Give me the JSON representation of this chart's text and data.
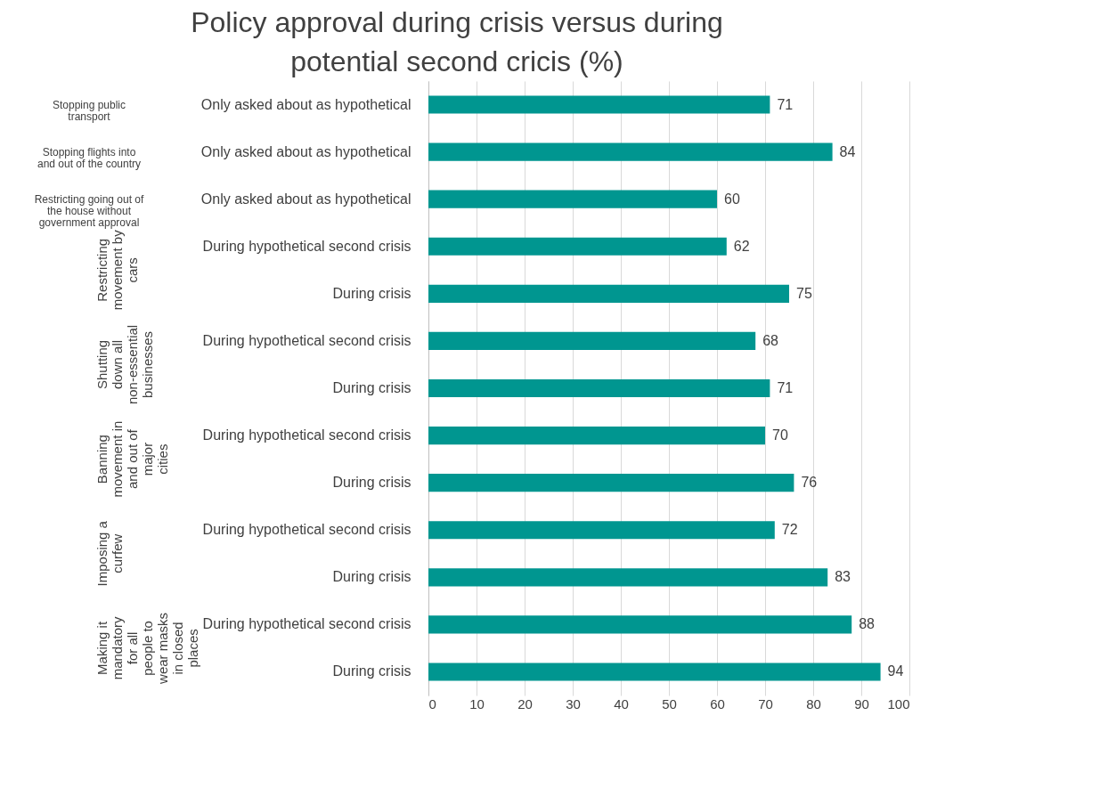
{
  "chart_data": {
    "type": "bar",
    "orientation": "horizontal",
    "title": "Policy approval during crisis versus during potential second cricis (%)",
    "categories": [
      "Only asked about as hypothetical",
      "Only asked about as hypothetical",
      "Only asked about as hypothetical",
      "During hypothetical second crisis",
      "During crisis",
      "During hypothetical second crisis",
      "During crisis",
      "During hypothetical second crisis",
      "During crisis",
      "During hypothetical second crisis",
      "During crisis",
      "During hypothetical second crisis",
      "During crisis"
    ],
    "values": [
      71,
      84,
      60,
      62,
      75,
      68,
      71,
      70,
      76,
      72,
      83,
      88,
      94
    ],
    "color": "#009690",
    "data_labels": true,
    "xlim": [
      0,
      100
    ],
    "xticks": [
      0,
      10,
      20,
      30,
      40,
      50,
      60,
      70,
      80,
      90,
      100
    ],
    "grid": "x",
    "annotations": [
      "Stopping public transport",
      "Stopping flights into and out of the country",
      "Restricting going out of the house without government approval",
      "Restricting movement by cars",
      "Shutting down all non-essential businesses",
      "Banning movement in and out of major cities",
      "Imposing a curfew",
      "Making it mandatory for all people to wear masks in closed places"
    ]
  }
}
